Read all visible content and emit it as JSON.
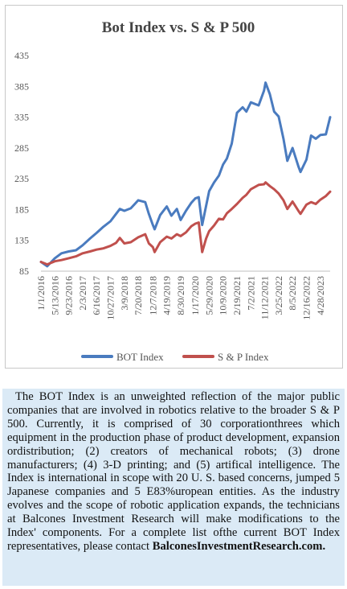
{
  "chart_data": {
    "type": "line",
    "title": "Bot Index vs. S & P 500",
    "ylim": [
      85,
      435
    ],
    "yticks": [
      85,
      135,
      185,
      235,
      285,
      335,
      385,
      435
    ],
    "x_tick_labels": [
      "1/1/2016",
      "5/13/2016",
      "9/23/2016",
      "2/3/2017",
      "6/16/2017",
      "10/27/2017",
      "3/9/2018",
      "7/20/2018",
      "12/7/2018",
      "4/19/2019",
      "8/30/2019",
      "1/17/2020",
      "5/29/2020",
      "10/9/2020",
      "2/19/2021",
      "7/2/2021",
      "11/12/2021",
      "3/25/2022",
      "8/5/2022",
      "12/16/2022",
      "4/28/2023"
    ],
    "x": [
      "2016-01-01",
      "2016-03-01",
      "2016-05-13",
      "2016-07-15",
      "2016-09-23",
      "2016-12-01",
      "2017-02-03",
      "2017-04-15",
      "2017-06-16",
      "2017-08-20",
      "2017-10-27",
      "2017-12-20",
      "2018-01-25",
      "2018-03-09",
      "2018-05-10",
      "2018-07-20",
      "2018-09-25",
      "2018-10-30",
      "2018-12-07",
      "2018-12-24",
      "2019-02-15",
      "2019-04-19",
      "2019-06-03",
      "2019-07-25",
      "2019-08-30",
      "2019-10-20",
      "2019-12-10",
      "2020-01-17",
      "2020-02-19",
      "2020-03-23",
      "2020-04-30",
      "2020-05-29",
      "2020-07-15",
      "2020-08-30",
      "2020-10-09",
      "2020-11-15",
      "2020-12-31",
      "2021-02-19",
      "2021-04-15",
      "2021-05-20",
      "2021-07-02",
      "2021-09-15",
      "2021-11-05",
      "2021-11-20",
      "2021-12-31",
      "2022-02-10",
      "2022-03-25",
      "2022-05-10",
      "2022-06-16",
      "2022-08-05",
      "2022-09-30",
      "2022-10-20",
      "2022-12-16",
      "2023-01-30",
      "2023-03-15",
      "2023-04-28",
      "2023-06-20",
      "2023-07-31"
    ],
    "series": [
      {
        "name": "BOT Index",
        "color": "#4a7bbf",
        "values": [
          100,
          93,
          106,
          114,
          117,
          119,
          127,
          138,
          147,
          157,
          166,
          178,
          186,
          183,
          187,
          200,
          197,
          178,
          160,
          153,
          176,
          190,
          175,
          186,
          168,
          183,
          196,
          203,
          205,
          160,
          191,
          215,
          229,
          240,
          258,
          268,
          292,
          342,
          351,
          344,
          359,
          354,
          378,
          391,
          372,
          344,
          336,
          300,
          264,
          285,
          255,
          246,
          266,
          305,
          300,
          306,
          307,
          335
        ]
      },
      {
        "name": "S & P Index",
        "color": "#c0504d",
        "values": [
          100,
          96,
          101,
          103,
          106,
          109,
          114,
          117,
          120,
          122,
          126,
          131,
          139,
          130,
          132,
          140,
          145,
          130,
          124,
          116,
          132,
          141,
          138,
          145,
          142,
          148,
          158,
          162,
          164,
          116,
          138,
          150,
          159,
          170,
          169,
          179,
          186,
          194,
          204,
          209,
          218,
          225,
          226,
          229,
          223,
          218,
          211,
          200,
          186,
          198,
          183,
          178,
          193,
          197,
          194,
          201,
          207,
          214
        ]
      }
    ],
    "legend_position": "bottom",
    "grid": false
  },
  "caption": {
    "text": "The BOT Index is an unweighted reflection of the major public companies that are involved in robotics relative to the broader S & P 500. Currently, it is comprised of 30 corporationthrees which equipment in the production phase of product development, expansion ordistribution; (2) creators of mechanical robots; (3) drone manufacturers; (4) 3-D printing; and (5) artifical intelligence. The Index is international in scope with 20 U. S. based concerns, jumped 5 Japanese companies and 5 E83%uropean entities. As the industry evolves and the scope of robotic application expands, the technicians at Balcones Investment Research will make modifications to the Index' components. For a  complete list ofthe current BOT Index representatives, please contact",
    "link": "BalconesInvestmentResearch.com."
  }
}
